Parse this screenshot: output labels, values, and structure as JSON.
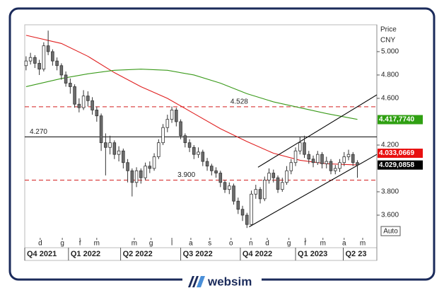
{
  "chart_data": {
    "type": "candlestick",
    "y_axis_label": "Price",
    "unit": "CNY",
    "scale_button": "Auto",
    "categories": [
      null,
      null,
      null,
      null,
      null,
      null,
      null,
      null,
      null,
      null,
      null,
      null,
      null,
      null,
      null,
      null,
      null,
      null,
      null,
      null,
      null,
      null,
      null,
      null,
      null,
      null,
      null,
      null,
      null,
      null,
      null,
      null,
      null,
      null,
      null,
      null,
      null,
      null,
      null,
      null,
      null,
      null,
      null,
      null,
      null,
      null,
      null,
      null,
      null,
      null,
      null,
      null,
      null,
      null,
      null,
      null,
      null,
      null,
      null,
      null,
      null,
      null,
      null,
      null,
      null,
      null,
      null,
      null,
      null,
      null,
      null,
      null,
      null,
      null,
      null,
      null
    ],
    "open": [
      4.88,
      4.92,
      4.95,
      4.9,
      4.85,
      5.05,
      5.0,
      4.92,
      4.88,
      4.8,
      4.73,
      4.7,
      4.55,
      4.52,
      4.62,
      4.58,
      4.5,
      4.45,
      4.22,
      4.18,
      4.22,
      4.12,
      4.15,
      4.05,
      3.98,
      3.88,
      3.98,
      3.92,
      4.02,
      4.0,
      4.1,
      4.22,
      4.35,
      4.42,
      4.5,
      4.4,
      4.28,
      4.22,
      4.18,
      4.12,
      4.14,
      4.06,
      4.02,
      3.98,
      3.96,
      3.88,
      3.82,
      3.85,
      3.72,
      3.65,
      3.6,
      3.52,
      3.78,
      3.82,
      3.74,
      3.9,
      3.96,
      3.92,
      3.82,
      3.88,
      3.98,
      4.05,
      4.15,
      4.22,
      4.12,
      4.08,
      4.05,
      4.12,
      4.04,
      4.06,
      3.98,
      4.0,
      4.05,
      4.1,
      4.12,
      4.05
    ],
    "high": [
      4.96,
      4.99,
      4.97,
      4.93,
      5.08,
      5.18,
      5.02,
      4.95,
      4.9,
      4.83,
      4.77,
      4.72,
      4.6,
      4.67,
      4.66,
      4.61,
      4.53,
      4.47,
      4.3,
      4.28,
      4.24,
      4.19,
      4.17,
      4.08,
      4.0,
      4.01,
      4.0,
      4.05,
      4.06,
      4.13,
      4.25,
      4.38,
      4.46,
      4.53,
      4.52,
      4.42,
      4.3,
      4.25,
      4.2,
      4.18,
      4.16,
      4.09,
      4.04,
      4.01,
      3.98,
      3.9,
      3.88,
      3.87,
      3.75,
      3.68,
      3.62,
      3.81,
      3.86,
      3.84,
      3.93,
      4.0,
      3.99,
      3.94,
      3.92,
      4.02,
      4.08,
      4.18,
      4.27,
      4.28,
      4.15,
      4.11,
      4.15,
      4.14,
      4.1,
      4.08,
      4.03,
      4.08,
      4.14,
      4.16,
      4.14,
      4.07
    ],
    "low": [
      4.84,
      4.89,
      4.86,
      4.8,
      4.83,
      4.97,
      4.88,
      4.84,
      4.76,
      4.7,
      4.64,
      4.52,
      4.48,
      4.5,
      4.53,
      4.46,
      4.4,
      4.15,
      3.94,
      4.12,
      4.08,
      4.06,
      4.0,
      3.88,
      3.76,
      3.84,
      3.87,
      3.9,
      3.96,
      3.98,
      4.08,
      4.2,
      4.31,
      4.39,
      4.36,
      4.25,
      4.18,
      4.14,
      4.08,
      4.09,
      4.02,
      3.98,
      3.94,
      3.92,
      3.84,
      3.79,
      3.78,
      3.69,
      3.61,
      3.55,
      3.49,
      3.51,
      3.74,
      3.7,
      3.72,
      3.87,
      3.88,
      3.79,
      3.8,
      3.86,
      3.95,
      4.02,
      4.12,
      4.09,
      4.04,
      4.01,
      4.03,
      4.0,
      4.0,
      3.95,
      3.95,
      3.97,
      4.02,
      4.07,
      4.02,
      3.92
    ],
    "close": [
      4.92,
      4.95,
      4.9,
      4.85,
      5.05,
      5.0,
      4.92,
      4.88,
      4.8,
      4.73,
      4.7,
      4.55,
      4.52,
      4.62,
      4.58,
      4.5,
      4.45,
      4.22,
      4.18,
      4.22,
      4.12,
      4.15,
      4.05,
      3.98,
      3.88,
      3.98,
      3.92,
      4.02,
      4.0,
      4.1,
      4.22,
      4.35,
      4.42,
      4.5,
      4.4,
      4.28,
      4.22,
      4.18,
      4.12,
      4.14,
      4.06,
      4.02,
      3.98,
      3.96,
      3.88,
      3.82,
      3.85,
      3.72,
      3.65,
      3.6,
      3.52,
      3.78,
      3.82,
      3.74,
      3.9,
      3.96,
      3.92,
      3.82,
      3.88,
      3.98,
      4.05,
      4.15,
      4.22,
      4.12,
      4.08,
      4.05,
      4.12,
      4.04,
      4.06,
      3.98,
      4.0,
      4.05,
      4.1,
      4.12,
      4.05,
      4.03
    ],
    "up_color": "#ffffff",
    "down_color": "#6e6e6e",
    "series": [
      {
        "color": "#e02020",
        "x": [
          0,
          8,
          14,
          20,
          26,
          32,
          38,
          44,
          50,
          56,
          62,
          68,
          75
        ],
        "values": [
          5.14,
          5.07,
          4.96,
          4.82,
          4.7,
          4.6,
          4.47,
          4.34,
          4.23,
          4.13,
          4.07,
          4.04,
          4.03
        ]
      },
      {
        "color": "#3a9a1a",
        "x": [
          0,
          8,
          14,
          20,
          26,
          32,
          38,
          44,
          50,
          56,
          62,
          68,
          75
        ],
        "values": [
          4.7,
          4.77,
          4.81,
          4.84,
          4.85,
          4.84,
          4.8,
          4.73,
          4.64,
          4.57,
          4.52,
          4.47,
          4.42
        ]
      }
    ],
    "trendlines": [
      {
        "color": "#000000",
        "x": [
          50.5,
          79.4
        ],
        "values": [
          3.5,
          4.12
        ]
      },
      {
        "color": "#000000",
        "x": [
          52.5,
          79.4
        ],
        "values": [
          4.01,
          4.63
        ]
      }
    ],
    "hlines": [
      {
        "value": 4.27,
        "label": "4.270",
        "color": "#000000",
        "style": "solid"
      },
      {
        "value": 4.528,
        "label": "4.528",
        "color": "#d42020",
        "style": "dashed"
      },
      {
        "value": 3.9,
        "label": "3.900",
        "color": "#d42020",
        "style": "dashed"
      }
    ],
    "price_tags": [
      {
        "value": 4.417774,
        "label": "4.417,7740",
        "color": "#2fa012"
      },
      {
        "value": 4.0330669,
        "label": "4.033,0669",
        "color": "#e81010"
      },
      {
        "value": 4.0290858,
        "label": "4.029,0858",
        "color": "#000000"
      }
    ],
    "xlim": [
      -0.3,
      79.4
    ],
    "ylim": [
      3.406,
      5.23
    ],
    "yticks": [
      {
        "value": 3.6,
        "label": "3.600"
      },
      {
        "value": 3.8,
        "label": "3.800"
      },
      {
        "value": 4.2,
        "label": "4.200"
      },
      {
        "value": 4.6,
        "label": "4.600"
      },
      {
        "value": 4.8,
        "label": "4.800"
      },
      {
        "value": 5.0,
        "label": "5.000"
      }
    ],
    "xticks": [
      {
        "value": 3.2,
        "label": "d"
      },
      {
        "value": 8.2,
        "label": "g"
      },
      {
        "value": 12.2,
        "label": "f"
      },
      {
        "value": 16,
        "label": "m"
      },
      {
        "value": 24.5,
        "label": "m"
      },
      {
        "value": 28.3,
        "label": "g"
      },
      {
        "value": 33,
        "label": "l"
      },
      {
        "value": 37.3,
        "label": "a"
      },
      {
        "value": 41.6,
        "label": "s"
      },
      {
        "value": 46.4,
        "label": "o"
      },
      {
        "value": 50.9,
        "label": "n"
      },
      {
        "value": 54.6,
        "label": "d"
      },
      {
        "value": 59.5,
        "label": "g"
      },
      {
        "value": 63.2,
        "label": "f"
      },
      {
        "value": 67.2,
        "label": "m"
      },
      {
        "value": 72,
        "label": "a"
      },
      {
        "value": 76.2,
        "label": "m"
      }
    ],
    "quarters": [
      {
        "value": -0.3,
        "label": "Q4 2021"
      },
      {
        "value": 9.6,
        "label": "Q1 2022"
      },
      {
        "value": 21.4,
        "label": "Q2 2022"
      },
      {
        "value": 35,
        "label": "Q3 2022"
      },
      {
        "value": 48.5,
        "label": "Q4 2022"
      },
      {
        "value": 61,
        "label": "Q1 2023"
      },
      {
        "value": 71.8,
        "label": "Q2 23"
      }
    ]
  },
  "footer": {
    "brand": "websim"
  }
}
